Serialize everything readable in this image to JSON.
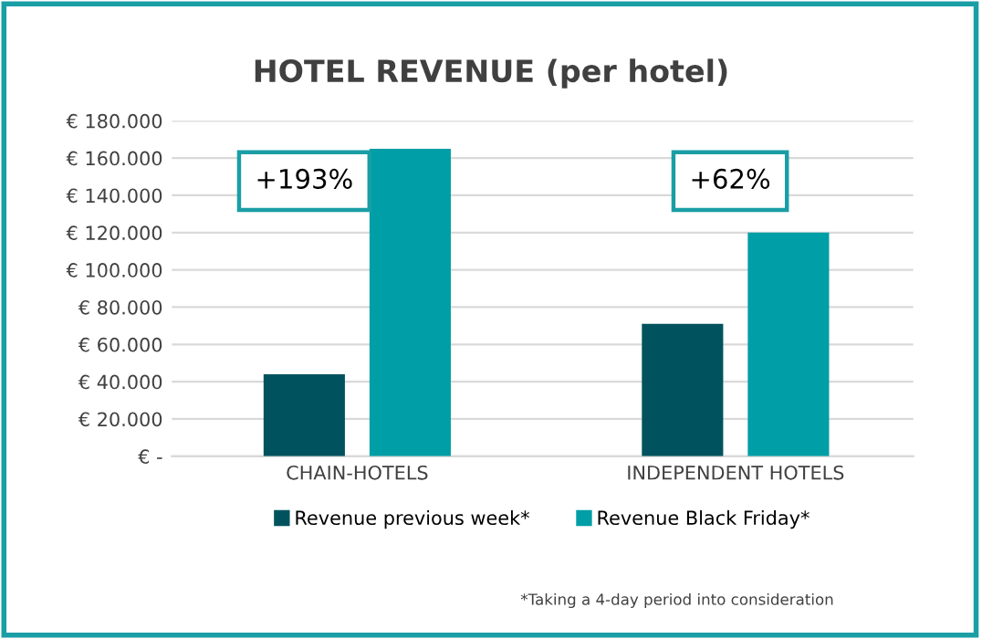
{
  "chart_data": {
    "type": "bar",
    "title": "HOTEL REVENUE (per hotel)",
    "categories": [
      "CHAIN-HOTELS",
      "INDEPENDENT HOTELS"
    ],
    "series": [
      {
        "name": "Revenue previous week*",
        "color": "#00535e",
        "values": [
          44000,
          71000
        ]
      },
      {
        "name": "Revenue Black Friday*",
        "color": "#009ea6",
        "values": [
          165000,
          120000
        ]
      }
    ],
    "ylim": [
      0,
      180000
    ],
    "yticks": [
      {
        "value": 0,
        "label": "€ -"
      },
      {
        "value": 20000,
        "label": "€ 20.000"
      },
      {
        "value": 40000,
        "label": "€ 40.000"
      },
      {
        "value": 60000,
        "label": "€ 60.000"
      },
      {
        "value": 80000,
        "label": "€ 80.000"
      },
      {
        "value": 100000,
        "label": "€ 100.000"
      },
      {
        "value": 120000,
        "label": "€ 120.000"
      },
      {
        "value": 140000,
        "label": "€ 140.000"
      },
      {
        "value": 160000,
        "label": "€ 160.000"
      },
      {
        "value": 180000,
        "label": "€ 180.000"
      }
    ],
    "grid": "y",
    "legend": "bottom",
    "annotations": [
      "+193%",
      "+62%",
      "*Taking a 4-day period into consideration"
    ]
  }
}
